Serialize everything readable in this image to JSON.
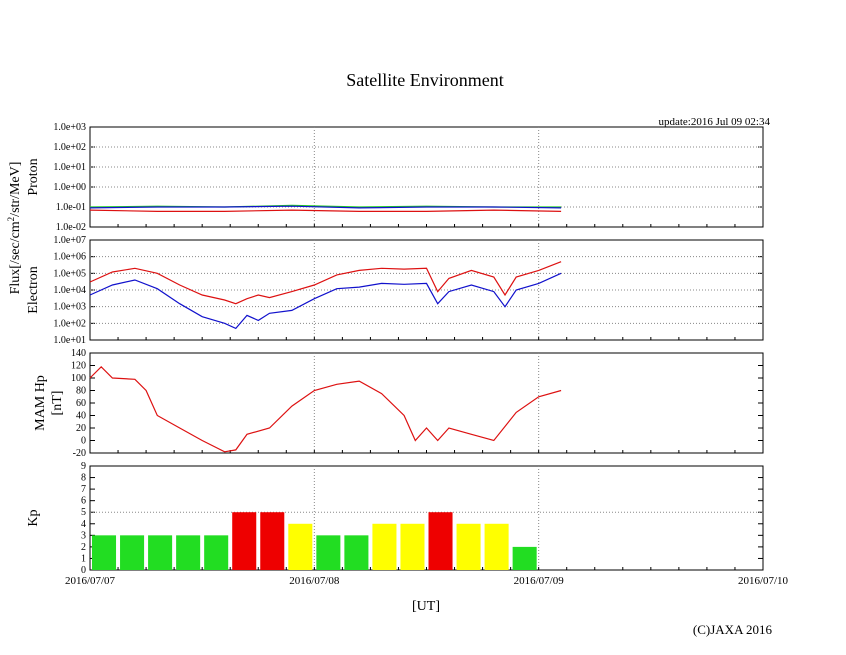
{
  "chart_data": {
    "title": "Satellite Environment",
    "update": "update:2016 Jul 09 02:34",
    "copyright": "(C)JAXA 2016",
    "xlabel": "[UT]",
    "x_ticks": [
      "2016/07/07",
      "2016/07/08",
      "2016/07/09",
      "2016/07/10"
    ],
    "xlim_days": [
      0,
      3
    ],
    "shared_ylabel": "Flux[/sec/cm²/str/MeV]",
    "panels": [
      {
        "id": "proton",
        "type": "line",
        "ylabel": "Proton",
        "scale": "log",
        "ylim": [
          0.01,
          1000
        ],
        "ytick_labels": [
          "1.0e-02",
          "1.0e-01",
          "1.0e+00",
          "1.0e+01",
          "1.0e+02",
          "1.0e+03"
        ],
        "series": [
          {
            "color": "#22cc22",
            "x": [
              0,
              0.3,
              0.6,
              0.9,
              1.2,
              1.5,
              1.8,
              2.1
            ],
            "y": [
              0.1,
              0.11,
              0.1,
              0.12,
              0.1,
              0.11,
              0.1,
              0.1
            ]
          },
          {
            "color": "#1111cc",
            "x": [
              0,
              0.3,
              0.6,
              0.9,
              1.2,
              1.5,
              1.8,
              2.1
            ],
            "y": [
              0.09,
              0.1,
              0.1,
              0.11,
              0.09,
              0.1,
              0.1,
              0.09
            ]
          },
          {
            "color": "#dd1111",
            "x": [
              0,
              0.3,
              0.6,
              0.9,
              1.2,
              1.5,
              1.8,
              2.1
            ],
            "y": [
              0.07,
              0.06,
              0.06,
              0.07,
              0.06,
              0.06,
              0.07,
              0.06
            ]
          }
        ]
      },
      {
        "id": "electron",
        "type": "line",
        "ylabel": "Electron",
        "scale": "log",
        "ylim": [
          10,
          10000000
        ],
        "ytick_labels": [
          "1.0e+01",
          "1.0e+02",
          "1.0e+03",
          "1.0e+04",
          "1.0e+05",
          "1.0e+06",
          "1.0e+07"
        ],
        "series": [
          {
            "color": "#dd1111",
            "x": [
              0,
              0.1,
              0.2,
              0.3,
              0.4,
              0.5,
              0.6,
              0.65,
              0.7,
              0.75,
              0.8,
              0.9,
              1.0,
              1.1,
              1.2,
              1.3,
              1.4,
              1.5,
              1.55,
              1.6,
              1.7,
              1.8,
              1.85,
              1.9,
              2.0,
              2.1
            ],
            "y": [
              30000,
              120000,
              200000,
              100000,
              20000,
              5000,
              2500,
              1500,
              3000,
              5000,
              3500,
              8000,
              20000,
              80000,
              150000,
              200000,
              180000,
              200000,
              8000,
              50000,
              150000,
              60000,
              5000,
              60000,
              150000,
              500000
            ]
          },
          {
            "color": "#1111cc",
            "x": [
              0,
              0.1,
              0.2,
              0.3,
              0.4,
              0.5,
              0.6,
              0.65,
              0.7,
              0.75,
              0.8,
              0.9,
              1.0,
              1.1,
              1.2,
              1.3,
              1.4,
              1.5,
              1.55,
              1.6,
              1.7,
              1.8,
              1.85,
              1.9,
              2.0,
              2.1
            ],
            "y": [
              5000,
              20000,
              40000,
              12000,
              1500,
              250,
              100,
              50,
              300,
              150,
              400,
              600,
              3000,
              12000,
              15000,
              25000,
              22000,
              25000,
              1500,
              8000,
              20000,
              8000,
              1000,
              10000,
              25000,
              100000
            ]
          }
        ]
      },
      {
        "id": "mam",
        "type": "line",
        "ylabel": "MAM Hp",
        "ylabel2": "[nT]",
        "scale": "linear",
        "ylim": [
          -20,
          140
        ],
        "ytick_labels": [
          "-20",
          "0",
          "20",
          "40",
          "60",
          "80",
          "100",
          "120",
          "140"
        ],
        "series": [
          {
            "color": "#dd1111",
            "x": [
              0,
              0.05,
              0.1,
              0.2,
              0.25,
              0.3,
              0.4,
              0.5,
              0.6,
              0.65,
              0.7,
              0.8,
              0.9,
              1.0,
              1.1,
              1.2,
              1.3,
              1.4,
              1.45,
              1.5,
              1.55,
              1.6,
              1.7,
              1.8,
              1.9,
              2.0,
              2.1
            ],
            "y": [
              100,
              118,
              100,
              98,
              80,
              40,
              20,
              0,
              -18,
              -15,
              10,
              20,
              55,
              80,
              90,
              95,
              75,
              40,
              0,
              20,
              0,
              20,
              10,
              0,
              45,
              70,
              80
            ]
          }
        ]
      },
      {
        "id": "kp",
        "type": "bar",
        "ylabel": "Kp",
        "scale": "linear",
        "ylim": [
          0,
          9
        ],
        "ytick_labels": [
          "0",
          "1",
          "2",
          "3",
          "4",
          "5",
          "6",
          "7",
          "8",
          "9"
        ],
        "bar_width_days": 0.125,
        "values": [
          3,
          3,
          3,
          3,
          3,
          5,
          5,
          4,
          3,
          3,
          4,
          4,
          5,
          4,
          4,
          2
        ],
        "level_colors": {
          "low": "#22dd22",
          "mid": "#ffff00",
          "high": "#ee0000"
        }
      }
    ]
  }
}
